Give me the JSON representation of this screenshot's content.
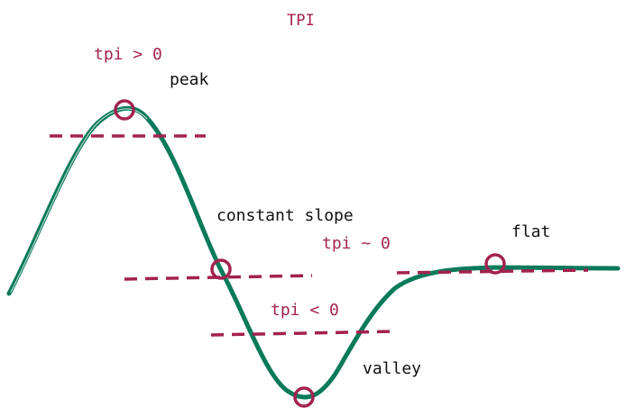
{
  "title": "TPI",
  "colors": {
    "curve": "#0a7a5a",
    "accent": "#a3224e",
    "text": "#111111",
    "background": "#ffffff"
  },
  "labels": {
    "peak": "peak",
    "constant_slope": "constant slope",
    "flat": "flat",
    "valley": "valley",
    "tpi_positive": "tpi > 0",
    "tpi_zero": "tpi ~ 0",
    "tpi_negative": "tpi < 0"
  }
}
